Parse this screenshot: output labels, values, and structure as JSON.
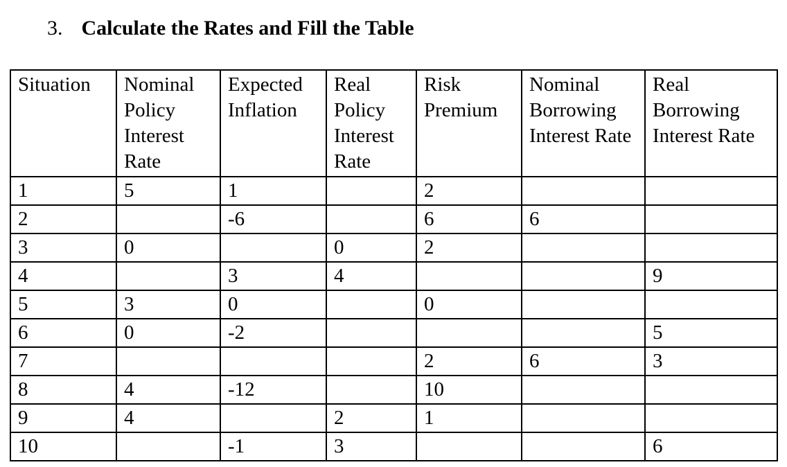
{
  "title": {
    "number": "3.",
    "text": "Calculate the Rates and Fill the Table"
  },
  "table": {
    "columns": [
      "Situation",
      "Nominal Policy Interest Rate",
      "Expected Inflation",
      "Real Policy Interest Rate",
      "Risk Premium",
      "Nominal Borrowing Interest Rate",
      "Real Borrowing Interest Rate"
    ],
    "rows": [
      [
        "1",
        "5",
        "1",
        "",
        "2",
        "",
        ""
      ],
      [
        "2",
        "",
        "-6",
        "",
        "6",
        "6",
        ""
      ],
      [
        "3",
        "0",
        "",
        "0",
        "2",
        "",
        ""
      ],
      [
        "4",
        "",
        "3",
        "4",
        "",
        "",
        "9"
      ],
      [
        "5",
        "3",
        "0",
        "",
        "0",
        "",
        ""
      ],
      [
        "6",
        "0",
        "-2",
        "",
        "",
        "",
        "5"
      ],
      [
        "7",
        "",
        "",
        "",
        "2",
        "6",
        "3"
      ],
      [
        "8",
        "4",
        "-12",
        "",
        "10",
        "",
        ""
      ],
      [
        "9",
        "4",
        "",
        "2",
        "1",
        "",
        ""
      ],
      [
        "10",
        "",
        "-1",
        "3",
        "",
        "",
        "6"
      ]
    ]
  }
}
